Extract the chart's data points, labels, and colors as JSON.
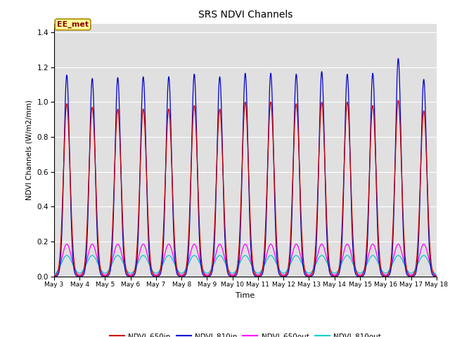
{
  "title": "SRS NDVI Channels",
  "xlabel": "Time",
  "ylabel": "NDVI Channels (W/m2/mm)",
  "ylim": [
    0,
    1.45
  ],
  "xlim_days": [
    3,
    18
  ],
  "background_color": "#e0e0e0",
  "grid_color": "#ffffff",
  "series": {
    "NDVI_650in": {
      "color": "#cc0000",
      "label": "NDVI_650in"
    },
    "NDVI_810in": {
      "color": "#0000cc",
      "label": "NDVI_810in"
    },
    "NDVI_650out": {
      "color": "#ff00ff",
      "label": "NDVI_650out"
    },
    "NDVI_810out": {
      "color": "#00cccc",
      "label": "NDVI_810out"
    }
  },
  "annotation_text": "EE_met",
  "peak_times": [
    3.5,
    4.5,
    5.5,
    6.5,
    7.5,
    8.5,
    9.5,
    10.5,
    11.5,
    12.5,
    13.5,
    14.5,
    15.5,
    16.5,
    17.5
  ],
  "peak_heights_650in": [
    0.99,
    0.97,
    0.96,
    0.96,
    0.96,
    0.98,
    0.96,
    1.0,
    1.0,
    0.99,
    1.0,
    1.0,
    0.98,
    1.01,
    0.95
  ],
  "peak_heights_810in": [
    1.155,
    1.135,
    1.14,
    1.145,
    1.145,
    1.16,
    1.145,
    1.165,
    1.165,
    1.16,
    1.175,
    1.16,
    1.165,
    1.25,
    1.13
  ],
  "peak_heights_650out": [
    0.185,
    0.185,
    0.185,
    0.185,
    0.185,
    0.185,
    0.185,
    0.185,
    0.185,
    0.185,
    0.185,
    0.185,
    0.185,
    0.185,
    0.185
  ],
  "peak_heights_810out": [
    0.12,
    0.12,
    0.12,
    0.12,
    0.12,
    0.12,
    0.12,
    0.12,
    0.12,
    0.12,
    0.12,
    0.12,
    0.12,
    0.12,
    0.12
  ],
  "sigma_650in": 0.13,
  "sigma_810in": 0.11,
  "sigma_650out": 0.18,
  "sigma_810out": 0.22,
  "tick_days": [
    3,
    4,
    5,
    6,
    7,
    8,
    9,
    10,
    11,
    12,
    13,
    14,
    15,
    16,
    17,
    18
  ],
  "tick_labels": [
    "May 3",
    "May 4",
    "May 5",
    "May 6",
    "May 7",
    "May 8",
    "May 9",
    "May 10",
    "May 11",
    "May 12",
    "May 13",
    "May 14",
    "May 15",
    "May 16",
    "May 17",
    "May 18"
  ]
}
